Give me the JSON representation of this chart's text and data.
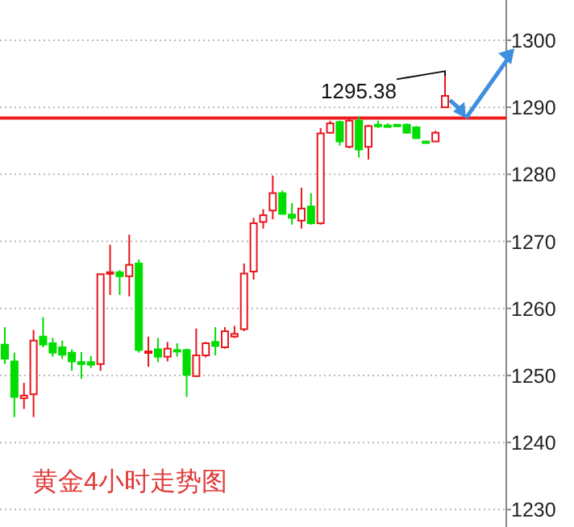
{
  "chart_data": {
    "type": "candlestick",
    "title": "黄金4小时走势图",
    "categories": [
      null,
      null,
      null,
      null,
      null,
      null,
      null,
      null,
      null,
      null,
      null,
      null,
      null,
      null,
      null,
      null,
      null,
      null,
      null,
      null,
      null,
      null,
      null,
      null,
      null,
      null,
      null,
      null,
      null,
      null,
      null,
      null,
      null,
      null,
      null,
      null,
      null,
      null,
      null,
      null,
      null,
      null,
      null,
      null,
      null,
      null,
      null
    ],
    "ohlc": [
      [
        1254.6,
        1257.2,
        1251.7,
        1252.5
      ],
      [
        1252.1,
        1253.4,
        1243.8,
        1246.8
      ],
      [
        1246.6,
        1248.9,
        1245.0,
        1247.0
      ],
      [
        1247.2,
        1256.8,
        1243.8,
        1255.2
      ],
      [
        1255.8,
        1258.7,
        1254.2,
        1254.6
      ],
      [
        1254.8,
        1255.6,
        1252.8,
        1253.4
      ],
      [
        1254.2,
        1255.2,
        1252.5,
        1253.1
      ],
      [
        1253.4,
        1253.9,
        1250.7,
        1252.1
      ],
      [
        1252.0,
        1253.5,
        1249.5,
        1251.7
      ],
      [
        1252.0,
        1252.9,
        1251.1,
        1251.6
      ],
      [
        1251.7,
        1265.2,
        1250.7,
        1265.1
      ],
      [
        1265.2,
        1269.5,
        1262.0,
        1265.4
      ],
      [
        1265.4,
        1265.7,
        1262.0,
        1264.8
      ],
      [
        1264.8,
        1271.0,
        1261.8,
        1266.5
      ],
      [
        1266.7,
        1267.3,
        1253.4,
        1253.8
      ],
      [
        1253.4,
        1255.8,
        1251.3,
        1253.6
      ],
      [
        1253.9,
        1255.6,
        1252.0,
        1252.8
      ],
      [
        1252.8,
        1255.0,
        1252.1,
        1254.0
      ],
      [
        1253.8,
        1254.8,
        1252.8,
        1253.6
      ],
      [
        1253.8,
        1254.0,
        1246.8,
        1250.1
      ],
      [
        1249.9,
        1257.0,
        1249.8,
        1253.0
      ],
      [
        1253.0,
        1255.0,
        1252.7,
        1254.8
      ],
      [
        1255.0,
        1257.2,
        1253.0,
        1254.4
      ],
      [
        1254.2,
        1257.2,
        1254.0,
        1256.6
      ],
      [
        1255.8,
        1257.4,
        1255.6,
        1256.2
      ],
      [
        1256.9,
        1266.7,
        1256.6,
        1265.2
      ],
      [
        1265.5,
        1273.5,
        1264.3,
        1272.7
      ],
      [
        1272.9,
        1274.8,
        1271.9,
        1273.9
      ],
      [
        1274.6,
        1279.8,
        1273.3,
        1277.2
      ],
      [
        1277.2,
        1277.6,
        1274.0,
        1274.1
      ],
      [
        1274.0,
        1275.7,
        1272.5,
        1273.5
      ],
      [
        1273.1,
        1278.0,
        1271.9,
        1274.9
      ],
      [
        1275.2,
        1277.2,
        1272.5,
        1272.7
      ],
      [
        1272.7,
        1286.9,
        1272.5,
        1286.1
      ],
      [
        1286.2,
        1288.0,
        1286.1,
        1287.6
      ],
      [
        1287.8,
        1288.0,
        1284.3,
        1284.9
      ],
      [
        1284.1,
        1288.3,
        1283.9,
        1288.0
      ],
      [
        1288.0,
        1288.6,
        1282.5,
        1283.7
      ],
      [
        1284.1,
        1287.4,
        1282.2,
        1287.2
      ],
      [
        1287.4,
        1288.0,
        1286.9,
        1287.2
      ],
      [
        1287.3,
        1287.6,
        1287.1,
        1287.2
      ],
      [
        1287.4,
        1287.5,
        1287.2,
        1287.3
      ],
      [
        1287.4,
        1287.6,
        1286.1,
        1286.2
      ],
      [
        1287.0,
        1287.2,
        1285.3,
        1285.4
      ],
      [
        1284.9,
        1285.0,
        1284.7,
        1284.8
      ],
      [
        1284.9,
        1286.5,
        1284.9,
        1286.2
      ],
      [
        1290.0,
        1295.38,
        1290.0,
        1291.7
      ]
    ],
    "colors": [
      "#00dd00",
      "#00dd00",
      "#e8161e",
      "#e8161e",
      "#00dd00",
      "#00dd00",
      "#00dd00",
      "#00dd00",
      "#00dd00",
      "#00dd00",
      "#e8161e",
      "#e8161e",
      "#00dd00",
      "#e8161e",
      "#00dd00",
      "#e8161e",
      "#00dd00",
      "#e8161e",
      "#00dd00",
      "#00dd00",
      "#e8161e",
      "#e8161e",
      "#00dd00",
      "#e8161e",
      "#e8161e",
      "#e8161e",
      "#e8161e",
      "#e8161e",
      "#e8161e",
      "#00dd00",
      "#00dd00",
      "#e8161e",
      "#00dd00",
      "#e8161e",
      "#e8161e",
      "#00dd00",
      "#e8161e",
      "#00dd00",
      "#e8161e",
      "#00dd00",
      "#00dd00",
      "#00dd00",
      "#00dd00",
      "#00dd00",
      "#00dd00",
      "#e8161e",
      "#e8161e"
    ],
    "ylim": [
      1227.4,
      1306.0
    ],
    "yticks": [
      1230,
      1240,
      1250,
      1260,
      1270,
      1280,
      1290,
      1300
    ],
    "grid": "y",
    "ref_lines": [
      {
        "axis": "y",
        "value": 1288.4,
        "color": "#ee1c1c"
      }
    ],
    "annotations": [
      "1295.38"
    ]
  }
}
